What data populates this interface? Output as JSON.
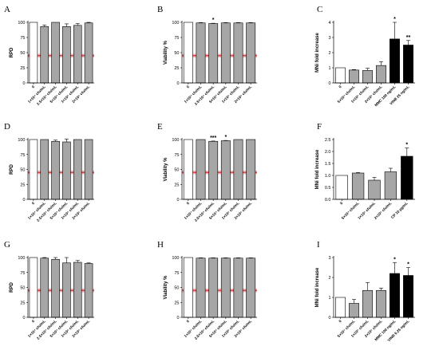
{
  "colors": {
    "white_bar": "#ffffff",
    "gray_bar": "#a6a6a6",
    "black_bar": "#000000",
    "threshold_line": "#e8191a",
    "threshold_band": "#f7b3b4"
  },
  "chart_data": [
    {
      "panel": "A",
      "type": "bar",
      "ylabel": "RPD",
      "ylim": [
        0,
        100
      ],
      "yticks": [
        0,
        25,
        50,
        75,
        100
      ],
      "threshold": 45,
      "categories": [
        "0",
        "1×10⁴ cfu/mL",
        "2.5×10⁴ cfu/mL",
        "5×10⁴ cfu/mL",
        "1×10⁵ cfu/mL",
        "2×10⁵ cfu/mL"
      ],
      "values": [
        100,
        93,
        100,
        93,
        95,
        99
      ],
      "errors": [
        0,
        2.5,
        0,
        4.5,
        3,
        1
      ],
      "colors": [
        "white",
        "gray",
        "gray",
        "gray",
        "gray",
        "gray"
      ],
      "significance": [
        "",
        "",
        "",
        "",
        "",
        ""
      ]
    },
    {
      "panel": "B",
      "type": "bar",
      "ylabel": "Viability %",
      "ylim": [
        0,
        100
      ],
      "yticks": [
        0,
        25,
        50,
        75,
        100
      ],
      "threshold": 45,
      "categories": [
        "0",
        "1×10⁴ cfu/mL",
        "2.5×10⁴ cfu/mL",
        "5×10⁴ cfu/mL",
        "1×10⁵ cfu/mL",
        "2×10⁵ cfu/mL"
      ],
      "values": [
        100,
        99,
        98,
        99,
        99,
        99
      ],
      "errors": [
        0,
        0.5,
        0.5,
        0.5,
        0.5,
        0.5
      ],
      "colors": [
        "white",
        "gray",
        "gray",
        "gray",
        "gray",
        "gray"
      ],
      "significance": [
        "",
        "",
        "*",
        "",
        "",
        ""
      ]
    },
    {
      "panel": "C",
      "type": "bar",
      "ylabel": "MNi fold increase",
      "ylim": [
        0,
        4
      ],
      "yticks": [
        0,
        1,
        2,
        3,
        4
      ],
      "categories": [
        "0",
        "5×10⁴ cfu/mL",
        "1×10⁵ cfu/mL",
        "2×10⁵ cfu/mL",
        "MMC 100 ng/mL",
        "VINB 25 ng/mL"
      ],
      "values": [
        1.0,
        0.85,
        0.82,
        1.15,
        2.9,
        2.5
      ],
      "errors": [
        0,
        0.03,
        0.15,
        0.25,
        1.1,
        0.3
      ],
      "colors": [
        "white",
        "gray",
        "gray",
        "gray",
        "black",
        "black"
      ],
      "significance": [
        "",
        "",
        "",
        "",
        "*",
        "**"
      ]
    },
    {
      "panel": "D",
      "type": "bar",
      "ylabel": "RPD",
      "ylim": [
        0,
        100
      ],
      "yticks": [
        0,
        25,
        50,
        75,
        100
      ],
      "threshold": 45,
      "categories": [
        "0",
        "1×10⁴ cfu/mL",
        "2.5×10⁴ cfu/mL",
        "5×10⁴ cfu/mL",
        "1×10⁵ cfu/mL",
        "2×10⁵ cfu/mL"
      ],
      "values": [
        100,
        100,
        97,
        96,
        100,
        100
      ],
      "errors": [
        0,
        0,
        2,
        5,
        0,
        0
      ],
      "colors": [
        "white",
        "gray",
        "gray",
        "gray",
        "gray",
        "gray"
      ],
      "significance": [
        "",
        "",
        "",
        "",
        "",
        ""
      ]
    },
    {
      "panel": "E",
      "type": "bar",
      "ylabel": "Viability %",
      "ylim": [
        0,
        100
      ],
      "yticks": [
        0,
        25,
        50,
        75,
        100
      ],
      "threshold": 45,
      "categories": [
        "0",
        "1×10⁴ cfu/mL",
        "2.5×10⁴ cfu/mL",
        "5×10⁴ cfu/mL",
        "1×10⁵ cfu/mL",
        "2×10⁵ cfu/mL"
      ],
      "values": [
        100,
        100,
        97,
        98,
        100,
        100
      ],
      "errors": [
        0,
        0,
        0.5,
        0.5,
        0,
        0
      ],
      "colors": [
        "white",
        "gray",
        "gray",
        "gray",
        "gray",
        "gray"
      ],
      "significance": [
        "",
        "",
        "***",
        "*",
        "",
        ""
      ]
    },
    {
      "panel": "F",
      "type": "bar",
      "ylabel": "MNi fold increase",
      "ylim": [
        0,
        2.5
      ],
      "yticks": [
        0.0,
        0.5,
        1.0,
        1.5,
        2.0,
        2.5
      ],
      "categories": [
        "0",
        "5×10⁴ cfu/mL",
        "1×10⁵ cfu/mL",
        "2×10⁵ cfu/mL",
        "CP 10 µg/mL"
      ],
      "values": [
        1.0,
        1.1,
        0.8,
        1.15,
        1.8
      ],
      "errors": [
        0,
        0.02,
        0.12,
        0.15,
        0.35
      ],
      "colors": [
        "white",
        "gray",
        "gray",
        "gray",
        "black"
      ],
      "significance": [
        "",
        "",
        "",
        "",
        "*"
      ]
    },
    {
      "panel": "G",
      "type": "bar",
      "ylabel": "RPD",
      "ylim": [
        0,
        100
      ],
      "yticks": [
        0,
        25,
        50,
        75,
        100
      ],
      "threshold": 45,
      "categories": [
        "0",
        "1×10⁴ cfu/mL",
        "2.5×10⁴ cfu/mL",
        "5×10⁴ cfu/mL",
        "1×10⁵ cfu/mL",
        "2×10⁵ cfu/mL"
      ],
      "values": [
        100,
        99,
        97,
        91,
        92,
        90
      ],
      "errors": [
        0,
        1,
        3,
        9,
        3,
        1
      ],
      "colors": [
        "white",
        "gray",
        "gray",
        "gray",
        "gray",
        "gray"
      ],
      "significance": [
        "",
        "",
        "",
        "",
        "",
        ""
      ]
    },
    {
      "panel": "H",
      "type": "bar",
      "ylabel": "Viability %",
      "ylim": [
        0,
        100
      ],
      "yticks": [
        0,
        25,
        50,
        75,
        100
      ],
      "threshold": 45,
      "categories": [
        "0",
        "1×10⁴ cfu/mL",
        "2.5×10⁴ cfu/mL",
        "5×10⁴ cfu/mL",
        "1×10⁵ cfu/mL",
        "2×10⁵ cfu/mL"
      ],
      "values": [
        100,
        99,
        99,
        99,
        99,
        99
      ],
      "errors": [
        0,
        0.5,
        0.5,
        0.5,
        0.5,
        0.5
      ],
      "colors": [
        "white",
        "gray",
        "gray",
        "gray",
        "gray",
        "gray"
      ],
      "significance": [
        "",
        "",
        "",
        "",
        "",
        ""
      ]
    },
    {
      "panel": "I",
      "type": "bar",
      "ylabel": "MNi fold increase",
      "ylim": [
        0,
        3
      ],
      "yticks": [
        0,
        1,
        2,
        3
      ],
      "categories": [
        "0",
        "5×10⁴ cfu/mL",
        "1×10⁵ cfu/mL",
        "2×10⁵ cfu/mL",
        "MMC 100 ng/mL",
        "VINB 6.25 ng/mL"
      ],
      "values": [
        1.0,
        0.7,
        1.35,
        1.35,
        2.2,
        2.1
      ],
      "errors": [
        0,
        0.2,
        0.4,
        0.12,
        0.55,
        0.4
      ],
      "colors": [
        "white",
        "gray",
        "gray",
        "gray",
        "black",
        "black"
      ],
      "significance": [
        "",
        "",
        "",
        "",
        "*",
        "*"
      ]
    }
  ]
}
